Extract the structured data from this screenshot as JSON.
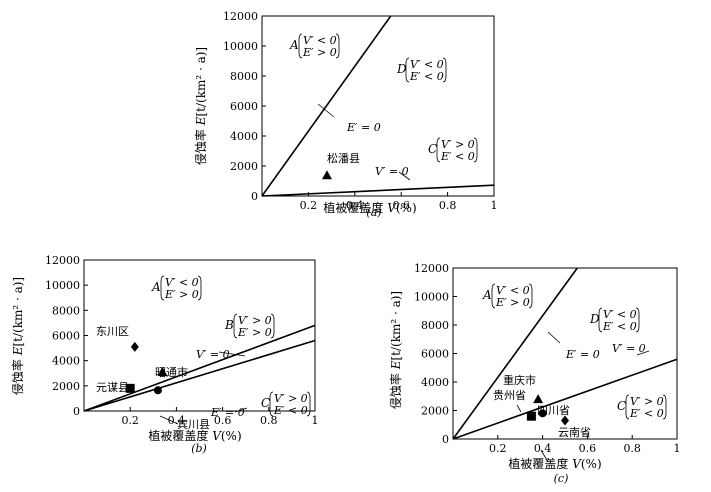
{
  "chart_data": [
    {
      "panel": "(a)",
      "type": "scatter",
      "xlabel": "植被覆盖度",
      "xlabel_var": "V",
      "xlabel_unit": "(%)",
      "ylabel": "侵蚀率",
      "ylabel_var": "E",
      "ylabel_unit": "[t/(km² · a)]",
      "xlim": [
        0,
        1
      ],
      "ylim": [
        0,
        12000
      ],
      "x_ticks": [
        "0.2",
        "0.4",
        "0.6",
        "0.8",
        "1"
      ],
      "y_ticks": [
        "0",
        "2000",
        "4000",
        "6000",
        "8000",
        "10000",
        "12000"
      ],
      "lines": [
        {
          "label": "E′ = 0",
          "points": [
            [
              0,
              0
            ],
            [
              0.555,
              12000
            ]
          ]
        },
        {
          "label": "V′ = 0",
          "points": [
            [
              0,
              0
            ],
            [
              1,
              720
            ]
          ]
        }
      ],
      "points": [
        {
          "name": "松潘县",
          "marker": "triangle",
          "x": 0.28,
          "y": 1380
        }
      ],
      "regions": [
        {
          "letter": "A",
          "conditions": [
            "V′ < 0",
            "E′ > 0"
          ]
        },
        {
          "letter": "D",
          "conditions": [
            "V′ < 0",
            "E′ < 0"
          ]
        },
        {
          "letter": "C",
          "conditions": [
            "V′ > 0",
            "E′ < 0"
          ]
        }
      ]
    },
    {
      "panel": "(b)",
      "type": "scatter",
      "xlabel": "植被覆盖度",
      "xlabel_var": "V",
      "xlabel_unit": "(%)",
      "ylabel": "侵蚀率",
      "ylabel_var": "E",
      "ylabel_unit": "[t/(km² · a)]",
      "xlim": [
        0,
        1
      ],
      "ylim": [
        0,
        12000
      ],
      "x_ticks": [
        "0.2",
        "0.4",
        "0.6",
        "0.8",
        "1"
      ],
      "y_ticks": [
        "0",
        "2000",
        "4000",
        "6000",
        "8000",
        "10000",
        "12000"
      ],
      "lines": [
        {
          "label": "V′ = 0",
          "points": [
            [
              0,
              0
            ],
            [
              1,
              6800
            ]
          ]
        },
        {
          "label": "E′ = 0",
          "points": [
            [
              0,
              0
            ],
            [
              1,
              5600
            ]
          ]
        }
      ],
      "points": [
        {
          "name": "东川区",
          "marker": "diamond",
          "x": 0.22,
          "y": 5100
        },
        {
          "name": "昭通市",
          "marker": "triangle",
          "x": 0.34,
          "y": 3100
        },
        {
          "name": "元谋县",
          "marker": "square",
          "x": 0.2,
          "y": 1800
        },
        {
          "name": "宾川县",
          "marker": "circle",
          "x": 0.32,
          "y": 1650
        }
      ],
      "regions": [
        {
          "letter": "A",
          "conditions": [
            "V′ < 0",
            "E′ > 0"
          ]
        },
        {
          "letter": "B",
          "conditions": [
            "V′ > 0",
            "E′ > 0"
          ]
        },
        {
          "letter": "C",
          "conditions": [
            "V′ > 0",
            "E′ < 0"
          ]
        }
      ]
    },
    {
      "panel": "(c)",
      "type": "scatter",
      "xlabel": "植被覆盖度",
      "xlabel_var": "V",
      "xlabel_unit": "(%)",
      "ylabel": "侵蚀率",
      "ylabel_var": "E",
      "ylabel_unit": "[t/(km² · a)]",
      "xlim": [
        0,
        1
      ],
      "ylim": [
        0,
        12000
      ],
      "x_ticks": [
        "0.2",
        "0.4",
        "0.6",
        "0.8",
        "1"
      ],
      "y_ticks": [
        "0",
        "2000",
        "4000",
        "6000",
        "8000",
        "10000",
        "12000"
      ],
      "lines": [
        {
          "label": "E′ = 0",
          "points": [
            [
              0,
              0
            ],
            [
              0.555,
              12000
            ]
          ]
        },
        {
          "label": "V′ = 0",
          "points": [
            [
              0,
              0
            ],
            [
              1,
              5600
            ]
          ]
        }
      ],
      "points": [
        {
          "name": "重庆市",
          "marker": "triangle",
          "x": 0.38,
          "y": 2800
        },
        {
          "name": "贵州省",
          "marker": "square",
          "x": 0.35,
          "y": 1600
        },
        {
          "name": "四川省",
          "marker": "circle",
          "x": 0.4,
          "y": 1800
        },
        {
          "name": "云南省",
          "marker": "diamond",
          "x": 0.5,
          "y": 1300
        }
      ],
      "regions": [
        {
          "letter": "A",
          "conditions": [
            "V′ < 0",
            "E′ > 0"
          ]
        },
        {
          "letter": "D",
          "conditions": [
            "V′ < 0",
            "E′ < 0"
          ]
        },
        {
          "letter": "C",
          "conditions": [
            "V′ > 0",
            "E′ < 0"
          ]
        }
      ]
    }
  ]
}
